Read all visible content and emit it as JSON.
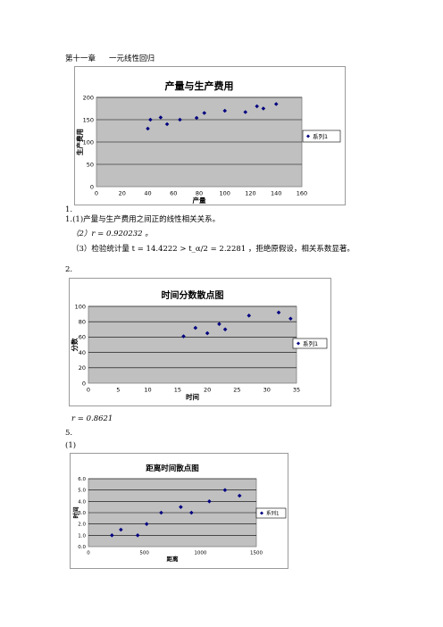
{
  "header": {
    "chapter": "第十一章",
    "title": "一元线性回归"
  },
  "lines": {
    "label_1": "1.",
    "item_1_1": "1.(1)产量与生产费用之间正的线性相关关系。",
    "item_1_2": "（2）r = 0.920232 。",
    "item_1_3": "（3）检验统计量 t = 14.4222 > t_α/2 = 2.2281 ，拒绝原假设，相关系数显著。",
    "label_2": "2.",
    "item_2_r": "r = 0.8621",
    "label_5": "5.",
    "item_5_1": "(1)"
  },
  "colors": {
    "marker": "#00007f",
    "plot_bg": "#c0c0c0",
    "grid": "#000000"
  },
  "chart_data": [
    {
      "type": "scatter",
      "title": "产量与生产费用",
      "xlabel": "产量",
      "ylabel": "生产费用",
      "xlim": [
        0,
        160
      ],
      "ylim": [
        0,
        200
      ],
      "xticks": [
        0,
        20,
        40,
        60,
        80,
        100,
        120,
        140,
        160
      ],
      "yticks": [
        0,
        50,
        100,
        150,
        200
      ],
      "grid": true,
      "legend": "right",
      "series": [
        {
          "name": "系列1",
          "x": [
            40,
            42,
            50,
            55,
            65,
            78,
            84,
            100,
            116,
            125,
            130,
            140
          ],
          "y": [
            130,
            150,
            155,
            140,
            150,
            154,
            165,
            170,
            167,
            180,
            175,
            185
          ]
        }
      ]
    },
    {
      "type": "scatter",
      "title": "时间分数散点图",
      "xlabel": "时间",
      "ylabel": "分数",
      "xlim": [
        0,
        35
      ],
      "ylim": [
        0,
        100
      ],
      "xticks": [
        0,
        5,
        10,
        15,
        20,
        25,
        30,
        35
      ],
      "yticks": [
        0,
        20,
        40,
        60,
        80,
        100
      ],
      "grid": true,
      "legend": "right",
      "series": [
        {
          "name": "系列1",
          "x": [
            16,
            18,
            20,
            22,
            23,
            27,
            32,
            34
          ],
          "y": [
            61,
            72,
            65,
            77,
            70,
            88,
            92,
            84
          ]
        }
      ]
    },
    {
      "type": "scatter",
      "title": "距离时间散点图",
      "xlabel": "距离",
      "ylabel": "时间",
      "xlim": [
        0,
        1500
      ],
      "ylim": [
        0,
        6
      ],
      "xticks": [
        0,
        500,
        1000,
        1500
      ],
      "xticklabels": [
        "0",
        "500",
        "1000",
        "1500"
      ],
      "yticks": [
        0,
        1,
        2,
        3,
        4,
        5,
        6
      ],
      "yticklabels": [
        "0.0",
        "1.0",
        "2.0",
        "3.0",
        "4.0",
        "5.0",
        "6.0"
      ],
      "grid": true,
      "legend": "right",
      "series": [
        {
          "name": "系列1",
          "x": [
            210,
            290,
            440,
            520,
            650,
            825,
            920,
            1080,
            1220,
            1350
          ],
          "y": [
            1.0,
            1.5,
            1.0,
            2.0,
            3.0,
            3.5,
            3.0,
            4.0,
            5.0,
            4.5
          ]
        }
      ]
    }
  ]
}
